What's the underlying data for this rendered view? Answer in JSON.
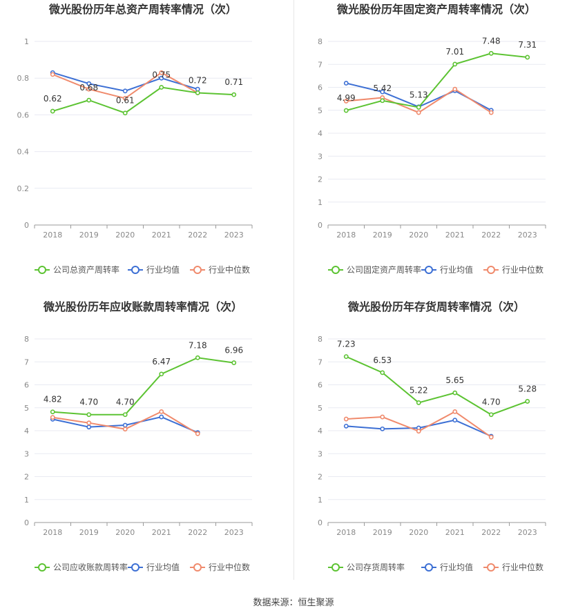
{
  "colors": {
    "company": "#5cc332",
    "industry_avg": "#3c6fd4",
    "industry_median": "#f08a6c",
    "grid": "#e8eaf2",
    "axis": "#888888"
  },
  "source_text": "数据来源：恒生聚源",
  "chart_data": [
    {
      "type": "line",
      "title": "微光股份历年总资产周转率情况（次）",
      "categories": [
        "2018",
        "2019",
        "2020",
        "2021",
        "2022",
        "2023"
      ],
      "ylim": [
        0,
        1
      ],
      "yticks": [
        "0",
        "0.2",
        "0.4",
        "0.6",
        "0.8",
        "1"
      ],
      "ytick_values": [
        0,
        0.2,
        0.4,
        0.6,
        0.8,
        1
      ],
      "legend_position": "bottom",
      "series": [
        {
          "name": "公司总资产周转率",
          "role": "company",
          "values": [
            0.62,
            0.68,
            0.61,
            0.75,
            0.72,
            0.71
          ],
          "labels": [
            "0.62",
            "0.68",
            "0.61",
            "0.75",
            "0.72",
            "0.71"
          ]
        },
        {
          "name": "行业均值",
          "role": "industry_avg",
          "values": [
            0.83,
            0.77,
            0.73,
            0.8,
            0.74,
            null
          ]
        },
        {
          "name": "行业中位数",
          "role": "industry_median",
          "values": [
            0.82,
            0.74,
            0.69,
            0.83,
            0.72,
            null
          ]
        }
      ]
    },
    {
      "type": "line",
      "title": "微光股份历年固定资产周转率情况（次）",
      "categories": [
        "2018",
        "2019",
        "2020",
        "2021",
        "2022",
        "2023"
      ],
      "ylim": [
        0,
        8
      ],
      "yticks": [
        "0",
        "1",
        "2",
        "3",
        "4",
        "5",
        "6",
        "7",
        "8"
      ],
      "ytick_values": [
        0,
        1,
        2,
        3,
        4,
        5,
        6,
        7,
        8
      ],
      "legend_position": "bottom",
      "series": [
        {
          "name": "公司固定资产周转率",
          "role": "company",
          "values": [
            4.99,
            5.42,
            5.13,
            7.01,
            7.48,
            7.31
          ],
          "labels": [
            "4.99",
            "5.42",
            "5.13",
            "7.01",
            "7.48",
            "7.31"
          ]
        },
        {
          "name": "行业均值",
          "role": "industry_avg",
          "values": [
            6.18,
            5.8,
            5.15,
            5.85,
            5.0,
            null
          ]
        },
        {
          "name": "行业中位数",
          "role": "industry_median",
          "values": [
            5.4,
            5.55,
            4.9,
            5.92,
            4.9,
            null
          ]
        }
      ]
    },
    {
      "type": "line",
      "title": "微光股份历年应收账款周转率情况（次）",
      "categories": [
        "2018",
        "2019",
        "2020",
        "2021",
        "2022",
        "2023"
      ],
      "ylim": [
        0,
        8
      ],
      "yticks": [
        "0",
        "1",
        "2",
        "3",
        "4",
        "5",
        "6",
        "7",
        "8"
      ],
      "ytick_values": [
        0,
        1,
        2,
        3,
        4,
        5,
        6,
        7,
        8
      ],
      "legend_position": "bottom",
      "series": [
        {
          "name": "公司应收账款周转率",
          "role": "company",
          "values": [
            4.82,
            4.7,
            4.7,
            6.47,
            7.18,
            6.96
          ],
          "labels": [
            "4.82",
            "4.70",
            "4.70",
            "6.47",
            "7.18",
            "6.96"
          ]
        },
        {
          "name": "行业均值",
          "role": "industry_avg",
          "values": [
            4.5,
            4.16,
            4.24,
            4.6,
            3.92,
            null
          ]
        },
        {
          "name": "行业中位数",
          "role": "industry_median",
          "values": [
            4.58,
            4.34,
            4.07,
            4.83,
            3.87,
            null
          ]
        }
      ]
    },
    {
      "type": "line",
      "title": "微光股份历年存货周转率情况（次）",
      "categories": [
        "2018",
        "2019",
        "2020",
        "2021",
        "2022",
        "2023"
      ],
      "ylim": [
        0,
        8
      ],
      "yticks": [
        "0",
        "1",
        "2",
        "3",
        "4",
        "5",
        "6",
        "7",
        "8"
      ],
      "ytick_values": [
        0,
        1,
        2,
        3,
        4,
        5,
        6,
        7,
        8
      ],
      "legend_position": "bottom",
      "series": [
        {
          "name": "公司存货周转率",
          "role": "company",
          "values": [
            7.23,
            6.53,
            5.22,
            5.65,
            4.7,
            5.28
          ],
          "labels": [
            "7.23",
            "6.53",
            "5.22",
            "5.65",
            "4.70",
            "5.28"
          ]
        },
        {
          "name": "行业均值",
          "role": "industry_avg",
          "values": [
            4.2,
            4.08,
            4.12,
            4.46,
            3.76,
            null
          ]
        },
        {
          "name": "行业中位数",
          "role": "industry_median",
          "values": [
            4.51,
            4.6,
            3.98,
            4.83,
            3.72,
            null
          ]
        }
      ]
    }
  ]
}
